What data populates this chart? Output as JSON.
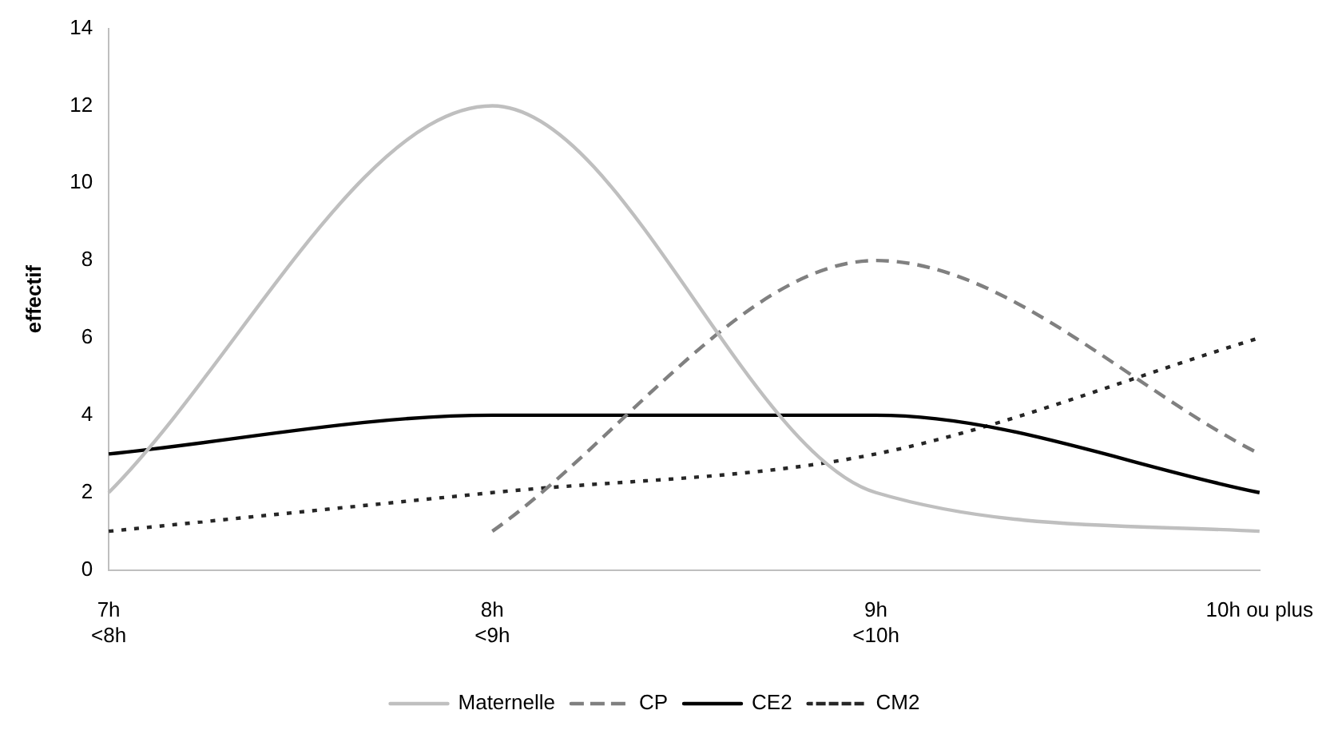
{
  "chart_data": {
    "type": "line",
    "ylabel": "effectif",
    "categories": [
      "7h\n<8h",
      "8h\n<9h",
      "9h\n<10h",
      "10h ou plus"
    ],
    "series": [
      {
        "name": "Maternelle",
        "color": "#bfbfbf",
        "line_style": "solid",
        "values": [
          2,
          12,
          2,
          1
        ]
      },
      {
        "name": "CP",
        "color": "#808080",
        "line_style": "dashed",
        "values": [
          null,
          1,
          8,
          3
        ]
      },
      {
        "name": "CE2",
        "color": "#000000",
        "line_style": "solid",
        "values": [
          3,
          4,
          4,
          2
        ]
      },
      {
        "name": "CM2",
        "color": "#262626",
        "line_style": "dotted",
        "values": [
          1,
          2,
          3,
          6
        ]
      }
    ],
    "ylim": [
      0,
      14
    ],
    "yticks": [
      0,
      2,
      4,
      6,
      8,
      10,
      12,
      14
    ],
    "grid": false,
    "legend": "bottom",
    "marker": "none"
  }
}
